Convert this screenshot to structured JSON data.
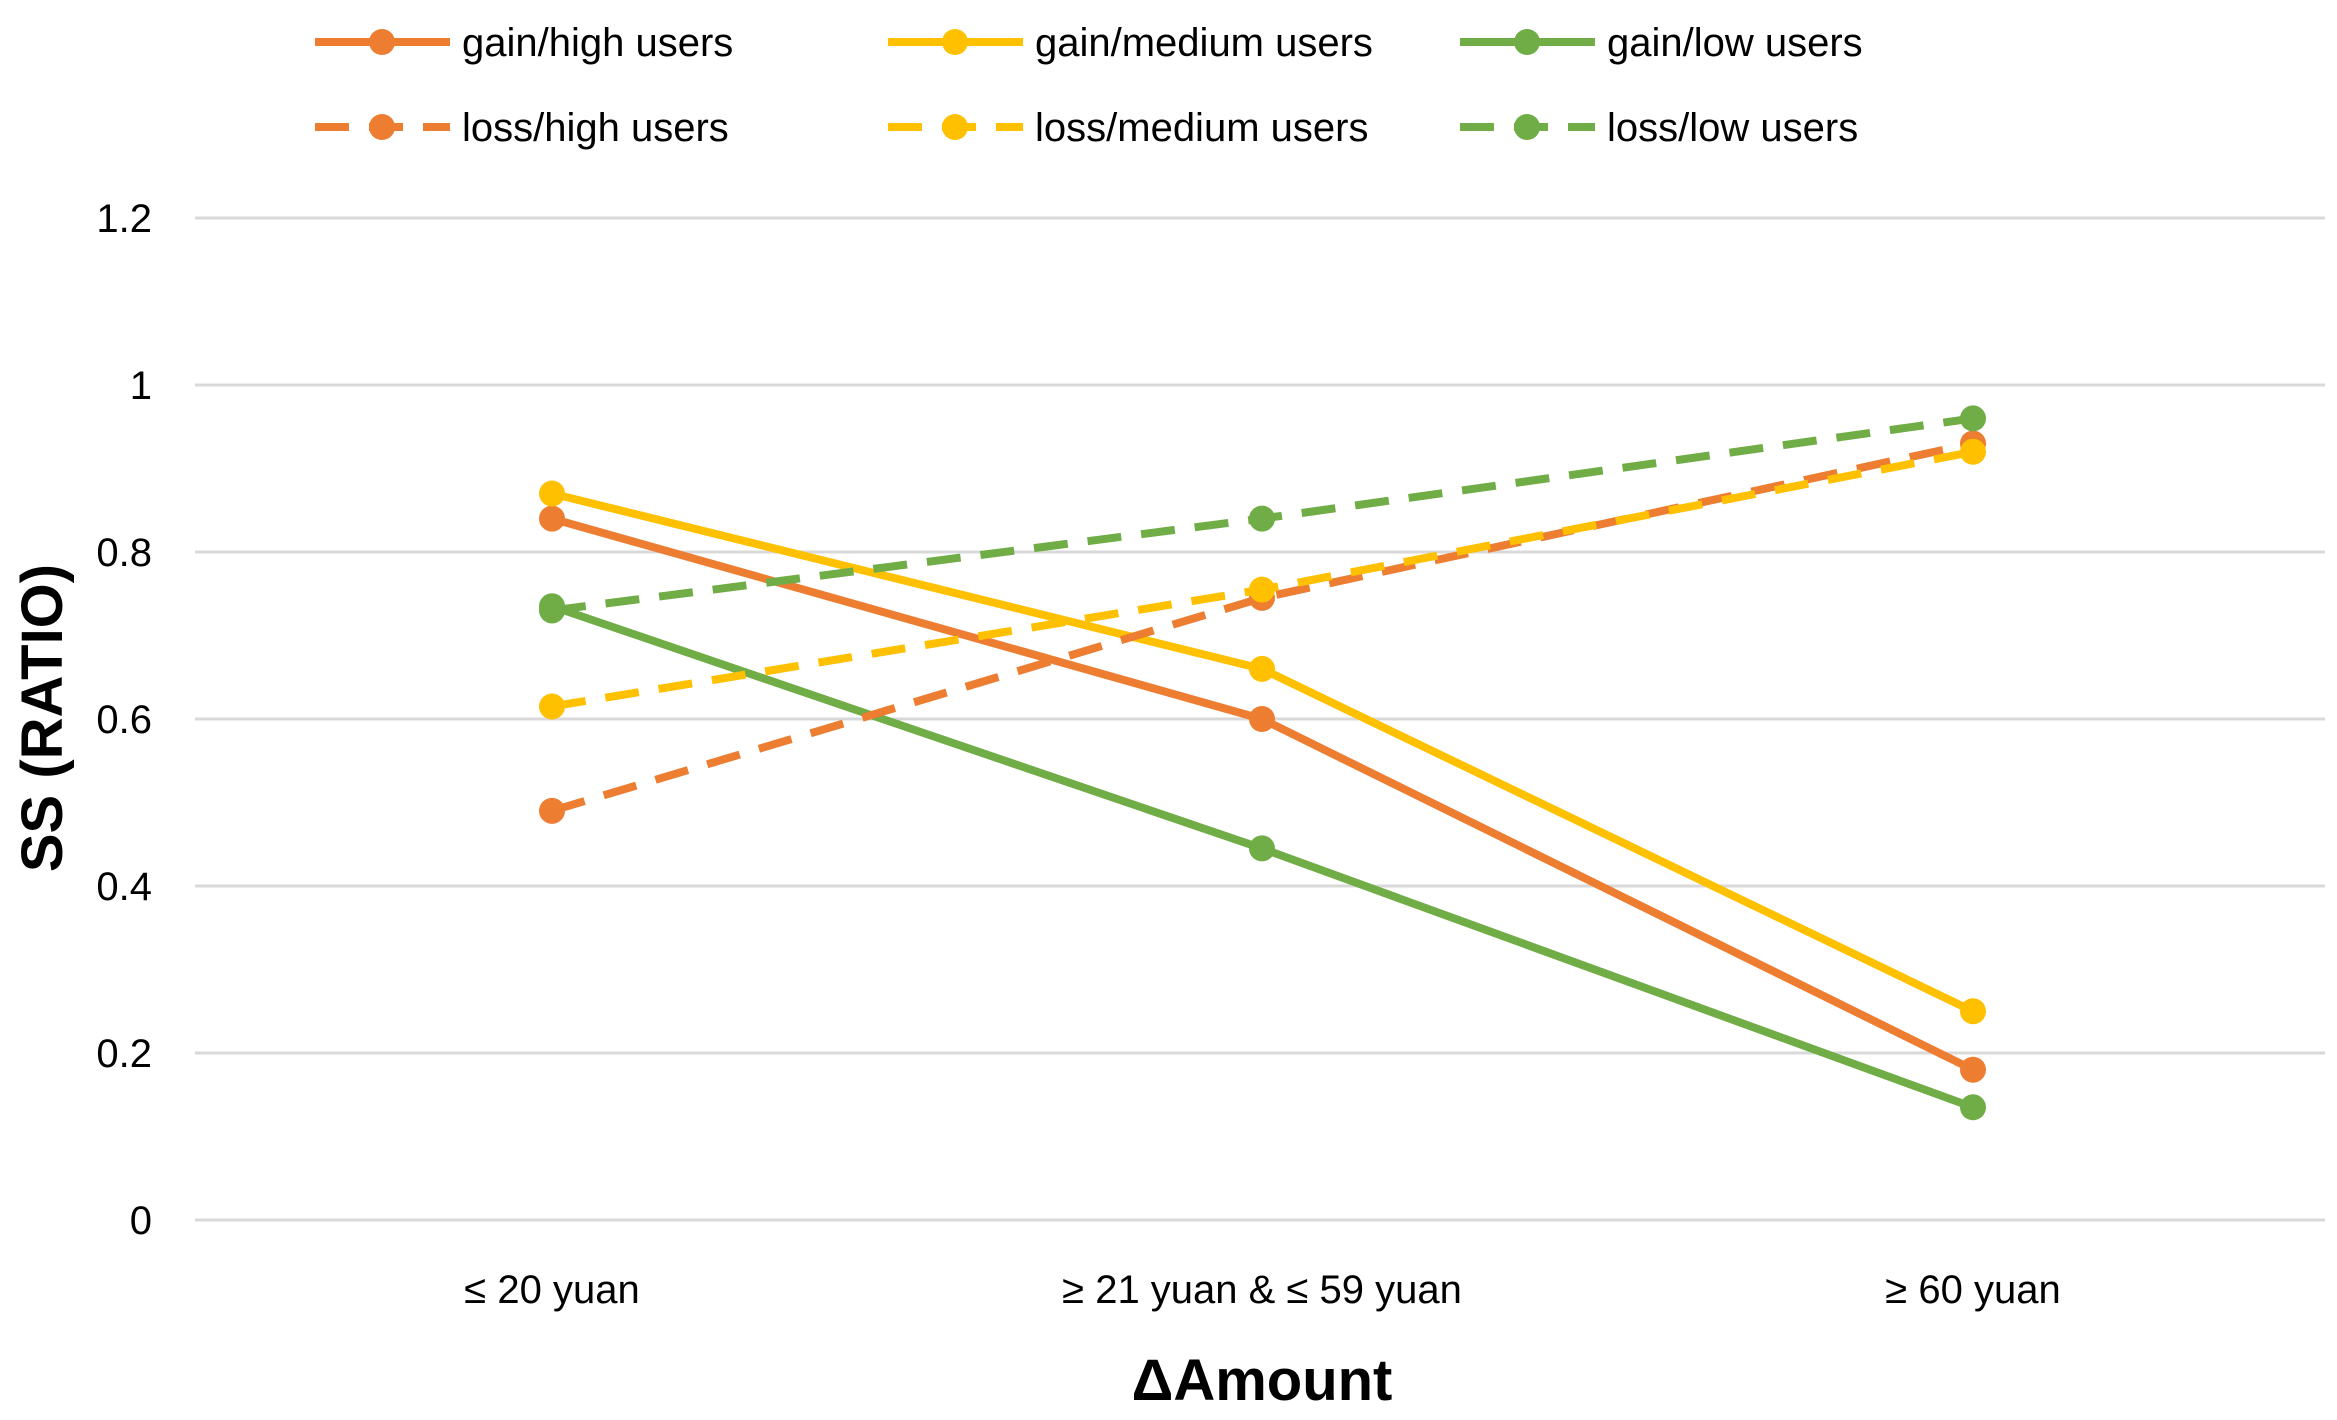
{
  "chart_data": {
    "type": "line",
    "title": "",
    "xlabel": "ΔAmount",
    "ylabel": "SS (RATIO)",
    "categories": [
      "≤ 20 yuan",
      "≥ 21 yuan & ≤ 59 yuan",
      "≥ 60 yuan"
    ],
    "ylim": [
      0,
      1.2
    ],
    "yticks": [
      "0",
      "0.2",
      "0.4",
      "0.6",
      "0.8",
      "1",
      "1.2"
    ],
    "yticks_values": [
      0,
      0.2,
      0.4,
      0.6,
      0.8,
      1.0,
      1.2
    ],
    "grid": true,
    "legend_position": "top",
    "series": [
      {
        "name": "gain/high users",
        "color": "#ED7D31",
        "dash": "solid",
        "values": [
          0.84,
          0.6,
          0.18
        ]
      },
      {
        "name": "gain/medium users",
        "color": "#FFC000",
        "dash": "solid",
        "values": [
          0.87,
          0.66,
          0.25
        ]
      },
      {
        "name": "gain/low users",
        "color": "#70AD47",
        "dash": "solid",
        "values": [
          0.735,
          0.445,
          0.135
        ]
      },
      {
        "name": "loss/high users",
        "color": "#ED7D31",
        "dash": "dashed",
        "values": [
          0.49,
          0.745,
          0.93
        ]
      },
      {
        "name": "loss/medium users",
        "color": "#FFC000",
        "dash": "dashed",
        "values": [
          0.615,
          0.755,
          0.92
        ]
      },
      {
        "name": "loss/low users",
        "color": "#70AD47",
        "dash": "dashed",
        "values": [
          0.73,
          0.84,
          0.96
        ]
      }
    ]
  }
}
